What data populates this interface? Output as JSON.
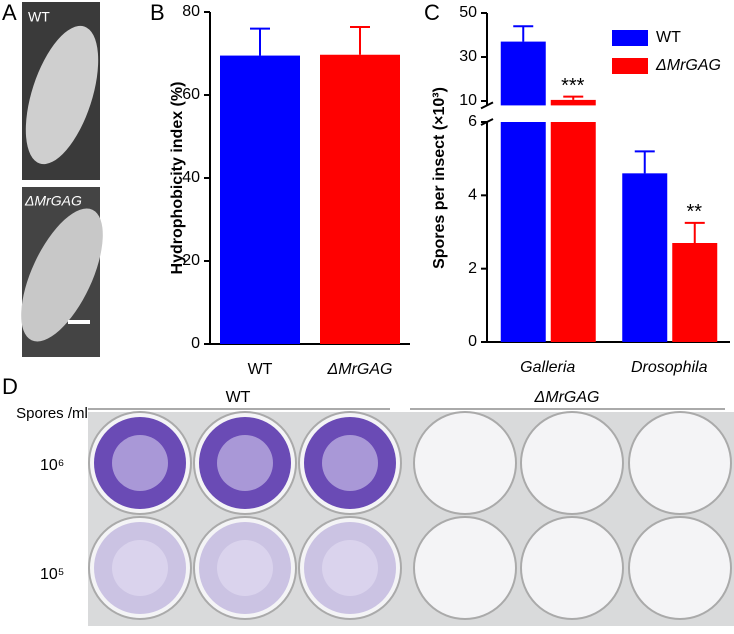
{
  "panels": {
    "a": "A",
    "b": "B",
    "c": "C",
    "d": "D"
  },
  "panel_a": {
    "top_label": "WT",
    "bottom_label": "ΔMrGAG"
  },
  "panel_d": {
    "row_header": "Spores /ml",
    "rows": [
      "10⁶",
      "10⁵"
    ],
    "groups": [
      "WT",
      "ΔMrGAG"
    ]
  },
  "chart_data": [
    {
      "type": "bar",
      "ylabel": "Hydrophobicity index (%)",
      "categories": [
        "WT",
        "ΔMrGAG"
      ],
      "values": [
        69.5,
        69.7
      ],
      "errors": [
        6.5,
        6.7
      ],
      "colors": [
        "#0000ff",
        "#ff0000"
      ],
      "ylim": [
        0,
        80
      ],
      "yticks": [
        0,
        20,
        40,
        60,
        80
      ]
    },
    {
      "type": "bar",
      "ylabel": "Spores per insect (×10³)",
      "categories": [
        "Galleria",
        "Drosophila"
      ],
      "series": [
        {
          "name": "WT",
          "color": "#0000ff",
          "values": [
            37,
            4.6
          ],
          "errors": [
            7,
            0.6
          ]
        },
        {
          "name": "ΔMrGAG",
          "color": "#ff0000",
          "values": [
            10.5,
            2.7
          ],
          "errors": [
            1.5,
            0.55
          ],
          "significance": [
            "***",
            "**"
          ]
        }
      ],
      "ylim": [
        0,
        50
      ],
      "ybreak": [
        6,
        8
      ],
      "yticks": [
        0,
        2,
        4,
        6,
        10,
        30,
        50
      ]
    }
  ]
}
